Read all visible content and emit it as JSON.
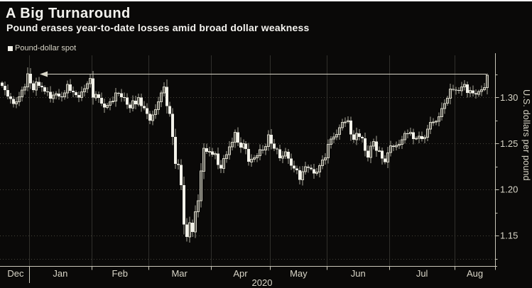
{
  "header": {
    "title": "A Big Turnaround",
    "subtitle": "Pound erases year-to-date losses amid broad dollar weakness"
  },
  "legend": {
    "label": "Pound-dollar spot"
  },
  "y_axis": {
    "title": "U.S. dollars per pound"
  },
  "chart_data": {
    "type": "candlestick",
    "title": "A Big Turnaround",
    "subtitle": "Pound erases year-to-date losses amid broad dollar weakness",
    "series_name": "Pound-dollar spot",
    "ylabel": "U.S. dollars per pound",
    "ylim": [
      1.117,
      1.348
    ],
    "y_major_ticks": [
      1.3,
      1.25,
      1.2,
      1.15
    ],
    "y_minor_ticks": [
      1.325,
      1.275,
      1.225,
      1.175,
      1.125
    ],
    "y_gridline_values": [
      1.3,
      1.25,
      1.2,
      1.15,
      1.125
    ],
    "grid": true,
    "legend_position": "top-left",
    "year_label": "2020",
    "ytd_reference_level": 1.3257,
    "last_bar_high": 1.3262,
    "first_open": 1.316,
    "months": [
      {
        "label": "Dec",
        "closes": [
          1.3125,
          1.308,
          1.3012,
          1.2985,
          1.293,
          1.2953,
          1.3005,
          1.308,
          1.3115,
          1.3257
        ]
      },
      {
        "label": "Jan",
        "closes": [
          1.3154,
          1.308,
          1.3167,
          1.3124,
          1.311,
          1.3066,
          1.306,
          1.2988,
          1.3025,
          1.3042,
          1.3012,
          1.3005,
          1.3049,
          1.314,
          1.3073,
          1.3055,
          1.3024,
          1.3,
          1.306,
          1.3094,
          1.315,
          1.3206
        ]
      },
      {
        "label": "Feb",
        "closes": [
          1.2997,
          1.3033,
          1.2995,
          1.2933,
          1.2891,
          1.2914,
          1.2953,
          1.2959,
          1.3047,
          1.3046,
          1.3001,
          1.2998,
          1.2921,
          1.2884,
          1.2964,
          1.2927,
          1.3,
          1.2907,
          1.2884,
          1.2823
        ]
      },
      {
        "label": "Mar",
        "closes": [
          1.275,
          1.2812,
          1.2866,
          1.2954,
          1.305,
          1.3113,
          1.2906,
          1.2823,
          1.257,
          1.228,
          1.2269,
          1.2049,
          1.1622,
          1.1487,
          1.164,
          1.154,
          1.176,
          1.188,
          1.22,
          1.245,
          1.241,
          1.2415
        ]
      },
      {
        "label": "Apr",
        "closes": [
          1.238,
          1.239,
          1.2267,
          1.223,
          1.2335,
          1.238,
          1.2465,
          1.2515,
          1.262,
          1.251,
          1.2455,
          1.25,
          1.244,
          1.23,
          1.233,
          1.2344,
          1.2367,
          1.2434,
          1.2427,
          1.2468,
          1.2594
        ]
      },
      {
        "label": "May",
        "closes": [
          1.25,
          1.2445,
          1.2435,
          1.234,
          1.2365,
          1.241,
          1.2335,
          1.226,
          1.223,
          1.221,
          1.2105,
          1.2195,
          1.2248,
          1.2235,
          1.2222,
          1.2175,
          1.219,
          1.226,
          1.232,
          1.2343
        ]
      },
      {
        "label": "Jun",
        "closes": [
          1.249,
          1.255,
          1.257,
          1.26,
          1.267,
          1.273,
          1.2735,
          1.275,
          1.26,
          1.254,
          1.261,
          1.257,
          1.2555,
          1.242,
          1.235,
          1.247,
          1.252,
          1.242,
          1.242,
          1.2335,
          1.2298,
          1.24
        ]
      },
      {
        "label": "Jul",
        "closes": [
          1.2475,
          1.2465,
          1.248,
          1.249,
          1.254,
          1.261,
          1.2605,
          1.262,
          1.255,
          1.2555,
          1.258,
          1.255,
          1.2568,
          1.2655,
          1.273,
          1.2735,
          1.274,
          1.279,
          1.288,
          1.2935,
          1.299,
          1.309,
          1.3085
        ]
      },
      {
        "label": "Aug",
        "closes": [
          1.308,
          1.307,
          1.3115,
          1.314,
          1.305,
          1.3075,
          1.3045,
          1.3035,
          1.3065,
          1.3085,
          1.3105,
          1.324
        ]
      }
    ]
  },
  "colors": {
    "background": "#0a0908",
    "top_line": "#f2f2f2",
    "title_text": "#f4f3ef",
    "muted_text": "#d8d5c7",
    "legend_swatch": "#f1efe7",
    "candle_down_fill": "#f2f1e9",
    "candle_up_stroke": "#d2d0c3",
    "wick": "#a8a69a",
    "grid_vertical": "#31302c",
    "grid_horizontal": "#45433a",
    "axis": "#c9c6b8",
    "arrow": "#d9d6c8"
  }
}
